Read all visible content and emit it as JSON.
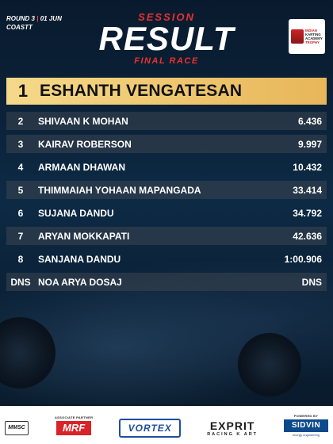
{
  "header": {
    "round": "ROUND 3",
    "date": "01 JUN",
    "venue": "COASTT",
    "session_label": "SESSION",
    "result_label": "RESULT",
    "race_label": "FINAL RACE"
  },
  "trophy_logo": {
    "line1": "INDIAN",
    "line2": "KARTING",
    "line3": "ACADEMY",
    "line4": "TROPHY"
  },
  "leader": {
    "position": "1",
    "name": "ESHANTH VENGATESAN"
  },
  "results": [
    {
      "position": "2",
      "name": "SHIVAAN K MOHAN",
      "gap": "6.436"
    },
    {
      "position": "3",
      "name": "KAIRAV ROBERSON",
      "gap": "9.997"
    },
    {
      "position": "4",
      "name": "ARMAAN DHAWAN",
      "gap": "10.432"
    },
    {
      "position": "5",
      "name": "THIMMAIAH YOHAAN MAPANGADA",
      "gap": "33.414"
    },
    {
      "position": "6",
      "name": "SUJANA DANDU",
      "gap": "34.792"
    },
    {
      "position": "7",
      "name": "ARYAN MOKKAPATI",
      "gap": "42.636"
    },
    {
      "position": "8",
      "name": "SANJANA DANDU",
      "gap": "1:00.906"
    },
    {
      "position": "DNS",
      "name": "NOA ARYA DOSAJ",
      "gap": "DNS"
    }
  ],
  "sponsors": {
    "mmsc": "MMSC",
    "associate_caption": "ASSOCIATE PARTNER",
    "mrf": "MRF",
    "vortex": "VORTEX",
    "exprit": "EXPRIT",
    "exprit_sub": "RACING K ART",
    "powered_caption": "POWERED BY",
    "sidvin": "SIDVIN",
    "sidvin_sub": "energy engineering"
  },
  "colors": {
    "accent_red": "#e8322f",
    "leader_gold": "#e8b659",
    "background": "#0b2238"
  }
}
